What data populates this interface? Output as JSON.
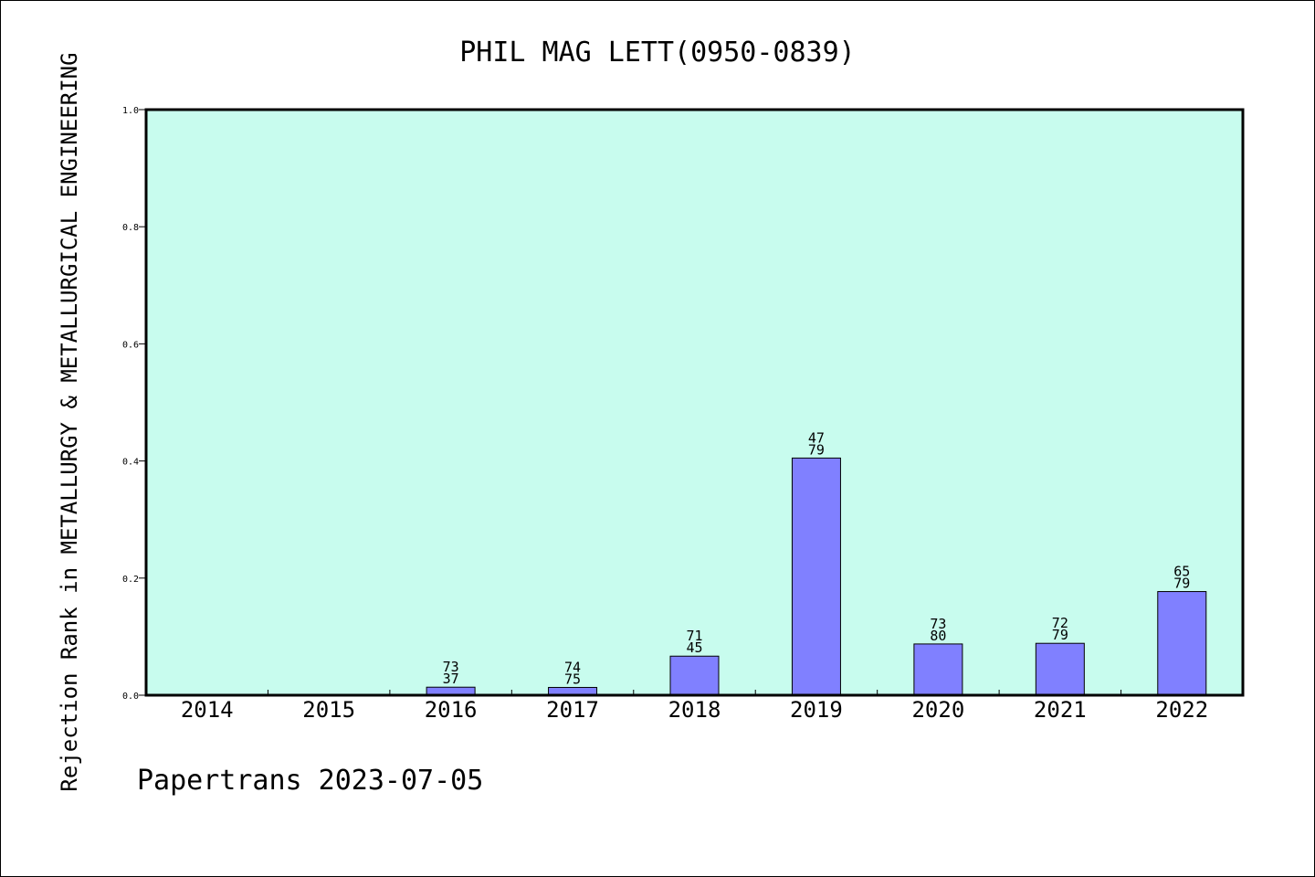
{
  "chart_data": {
    "type": "bar",
    "title": "PHIL MAG LETT(0950-0839)",
    "xlabel": "",
    "ylabel": "Rejection Rank in METALLURGY & METALLURGICAL ENGINEERING",
    "ylim": [
      0,
      1.0
    ],
    "yticks": [
      "0.0",
      "0.2",
      "0.4",
      "0.6",
      "0.8",
      "1.0"
    ],
    "categories": [
      "2014",
      "2015",
      "2016",
      "2017",
      "2018",
      "2019",
      "2020",
      "2021",
      "2022"
    ],
    "values": [
      0,
      0,
      0.0137,
      0.0133,
      0.0667,
      0.405,
      0.0875,
      0.0886,
      0.177
    ],
    "labels": [
      null,
      null,
      [
        "73",
        "37"
      ],
      [
        "74",
        "75"
      ],
      [
        "71",
        "45"
      ],
      [
        "47",
        "79"
      ],
      [
        "73",
        "80"
      ],
      [
        "72",
        "79"
      ],
      [
        "65",
        "79"
      ]
    ],
    "grid": false,
    "colors": {
      "plot_bg": "#c8fcee",
      "bar": "#8080ff"
    }
  },
  "footer": {
    "text": "Papertrans 2023-07-05"
  }
}
